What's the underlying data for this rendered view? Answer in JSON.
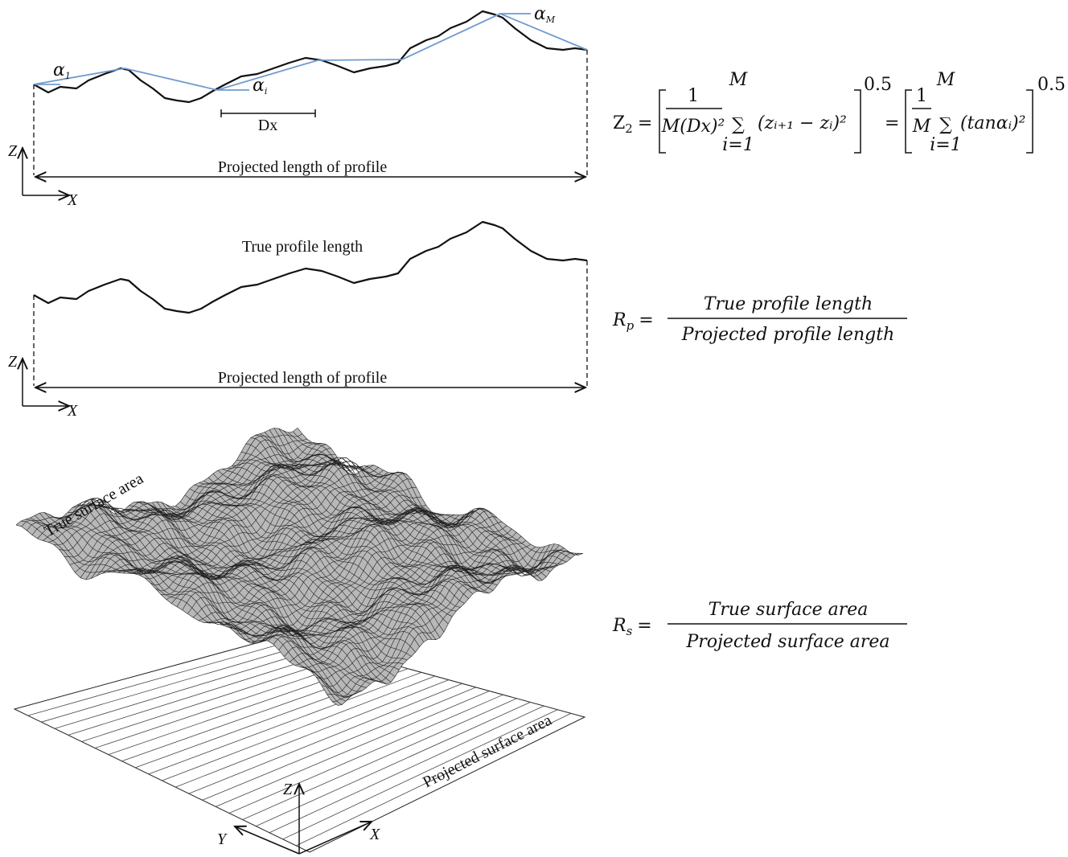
{
  "profile_diagram": {
    "alpha_1": {
      "symbol": "α",
      "sub": "1"
    },
    "alpha_i": {
      "symbol": "α",
      "sub": "i"
    },
    "alpha_M": {
      "symbol": "α",
      "sub": "M"
    },
    "dx": "Dx",
    "z_axis": "Z",
    "x_axis": "X",
    "projected_label": "Projected length of profile"
  },
  "true_profile_diagram": {
    "true_label": "True profile length",
    "projected_label": "Projected length of profile",
    "z_axis": "Z",
    "x_axis": "X"
  },
  "surface_diagram": {
    "true_label": "True surface area",
    "projected_label": "Projected surface area",
    "z_axis": "Z",
    "y_axis": "Y",
    "x_axis": "X"
  },
  "formulas": {
    "z2": {
      "lhs": "Z",
      "lhs_sub": "2",
      "eq1": "=",
      "frac_num": "1",
      "frac_den": "M(Dx)²",
      "sum1_top": "M",
      "sum1_sign": "∑",
      "sum1_bottom": "i=1",
      "term1": "(zᵢ₊₁ − zᵢ)²",
      "exp1": "0.5",
      "eq2": "=",
      "frac2_num": "1",
      "frac2_den": "M",
      "sum2_top": "M",
      "sum2_sign": "∑",
      "sum2_bottom": "i=1",
      "term2": "(tanαᵢ)²",
      "exp2": "0.5"
    },
    "rp": {
      "lhs": "R",
      "lhs_sub": "p",
      "eq": "=",
      "numerator": "True profile length",
      "denominator": "Projected profile length"
    },
    "rs": {
      "lhs": "R",
      "lhs_sub": "s",
      "eq": "=",
      "numerator": "True surface area",
      "denominator": "Projected surface area"
    }
  }
}
